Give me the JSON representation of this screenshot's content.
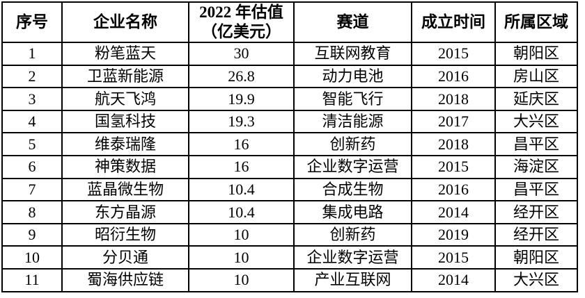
{
  "table": {
    "columns": [
      {
        "key": "index",
        "label": "序号"
      },
      {
        "key": "name",
        "label": "企业名称"
      },
      {
        "key": "valuation",
        "label": "2022 年估值\n（亿美元）"
      },
      {
        "key": "track",
        "label": "赛道"
      },
      {
        "key": "founded",
        "label": "成立时间"
      },
      {
        "key": "district",
        "label": "所属区域"
      }
    ],
    "rows": [
      [
        "1",
        "粉笔蓝天",
        "30",
        "互联网教育",
        "2015",
        "朝阳区"
      ],
      [
        "2",
        "卫蓝新能源",
        "26.8",
        "动力电池",
        "2016",
        "房山区"
      ],
      [
        "3",
        "航天飞鸿",
        "19.9",
        "智能飞行",
        "2018",
        "延庆区"
      ],
      [
        "4",
        "国氢科技",
        "19.3",
        "清洁能源",
        "2017",
        "大兴区"
      ],
      [
        "5",
        "维泰瑞隆",
        "16",
        "创新药",
        "2018",
        "昌平区"
      ],
      [
        "6",
        "神策数据",
        "16",
        "企业数字运营",
        "2015",
        "海淀区"
      ],
      [
        "7",
        "蓝晶微生物",
        "10.4",
        "合成生物",
        "2016",
        "昌平区"
      ],
      [
        "8",
        "东方晶源",
        "10.4",
        "集成电路",
        "2014",
        "经开区"
      ],
      [
        "9",
        "昭衍生物",
        "10",
        "创新药",
        "2019",
        "经开区"
      ],
      [
        "10",
        "分贝通",
        "10",
        "企业数字运营",
        "2015",
        "朝阳区"
      ],
      [
        "11",
        "蜀海供应链",
        "10",
        "产业互联网",
        "2014",
        "大兴区"
      ]
    ],
    "colors": {
      "border": "#000000",
      "text": "#000000",
      "background": "#ffffff"
    }
  }
}
